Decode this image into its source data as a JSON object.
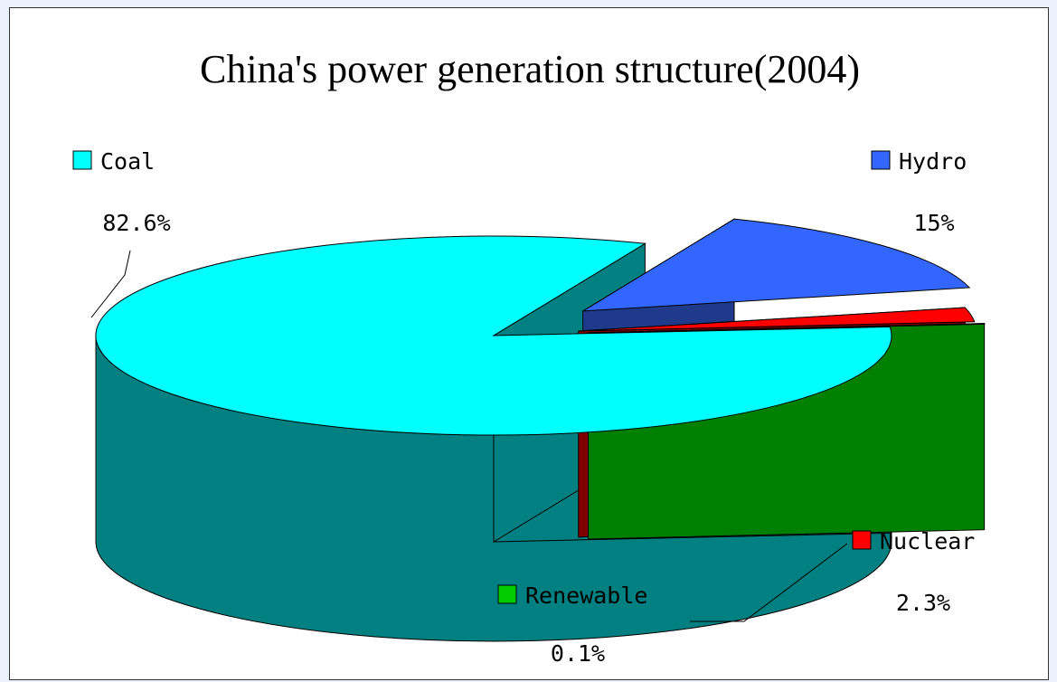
{
  "chart_data": {
    "type": "pie",
    "title": "China's power generation structure(2004)",
    "slices": [
      {
        "name": "Coal",
        "value": 82.6,
        "label": "82.6%",
        "color": "#00ffff",
        "side_color": "#008080"
      },
      {
        "name": "Hydro",
        "value": 15,
        "label": "15%",
        "color": "#3366ff",
        "side_color": "#1f3a8a"
      },
      {
        "name": "Nuclear",
        "value": 2.3,
        "label": "2.3%",
        "color": "#ff0000",
        "side_color": "#800000"
      },
      {
        "name": "Renewable",
        "value": 0.1,
        "label": "0.1%",
        "color": "#00cc00",
        "side_color": "#008000"
      }
    ],
    "three_d": true,
    "legend": "labels beside slices"
  }
}
